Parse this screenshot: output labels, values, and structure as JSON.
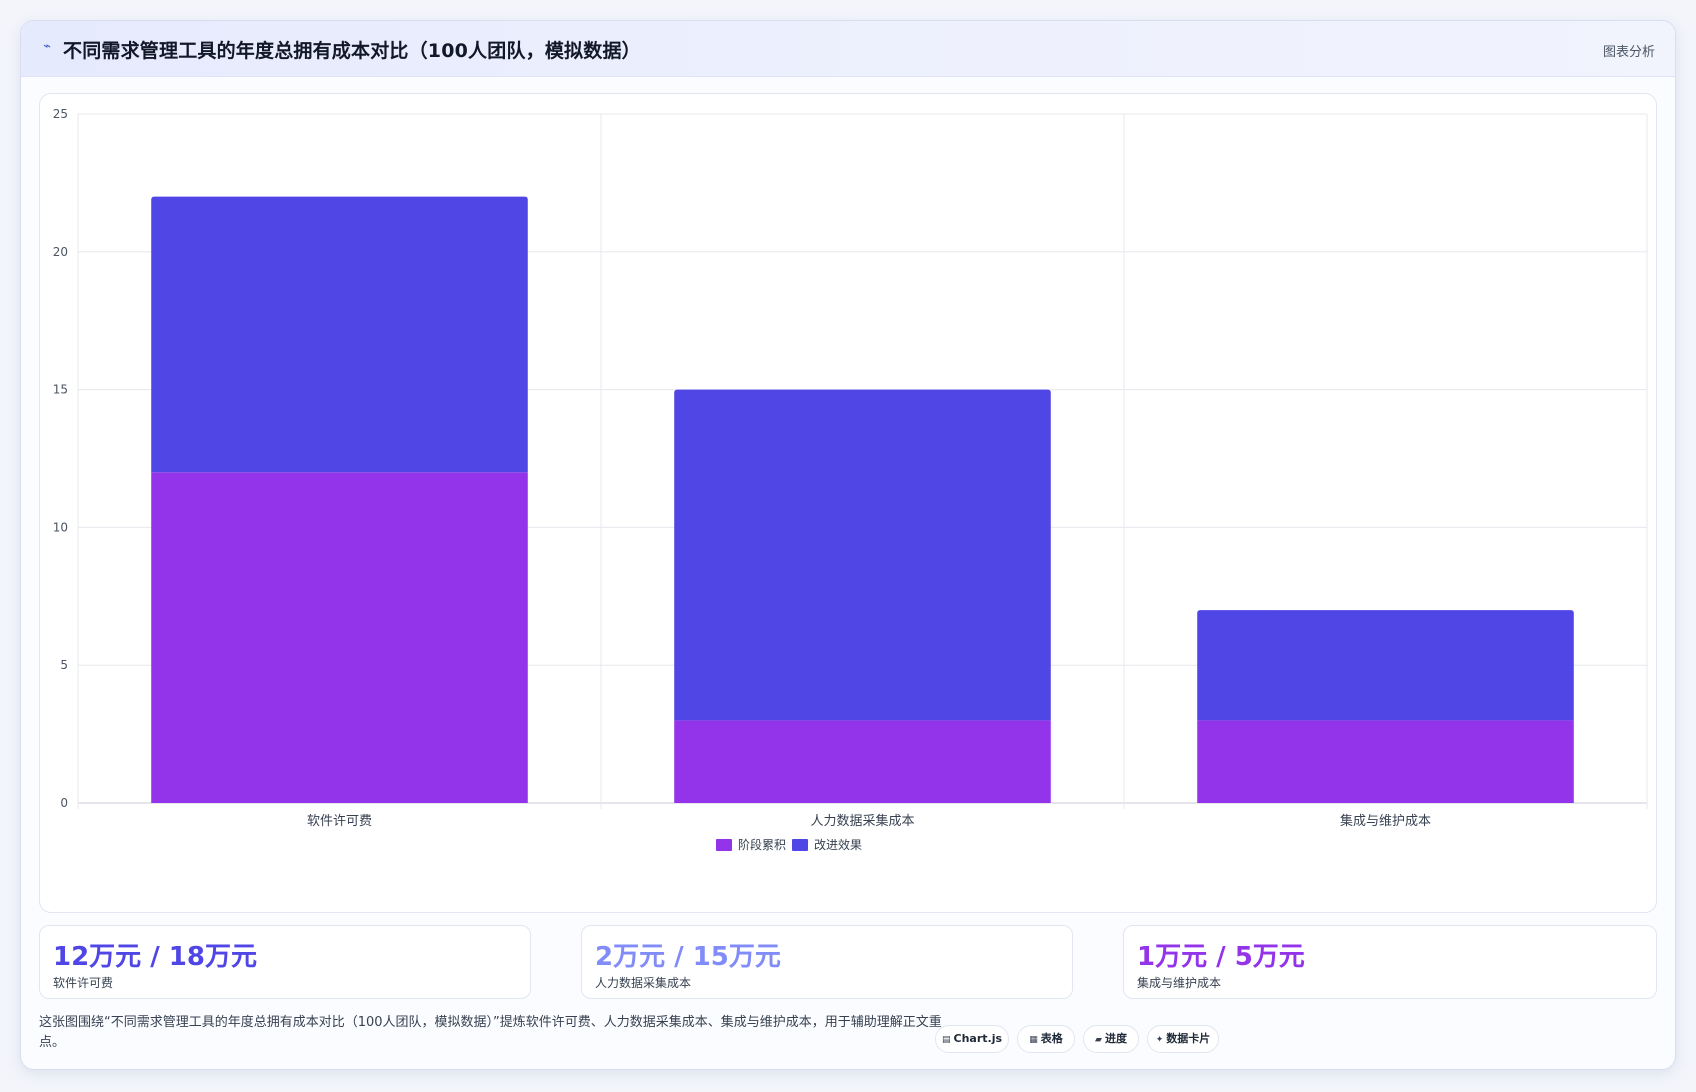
{
  "header": {
    "icon": "chart-line-icon",
    "title": "不同需求管理工具的年度总拥有成本对比（100人团队，模拟数据）",
    "link_label": "图表分析"
  },
  "colors": {
    "series_stage": "#9333ea",
    "series_improve": "#4f46e5",
    "stat_1": "#4f46e5",
    "stat_2": "#818cf8",
    "stat_3": "#9333ea"
  },
  "chart_data": {
    "type": "bar",
    "stacked": true,
    "categories": [
      "软件许可费",
      "人力数据采集成本",
      "集成与维护成本"
    ],
    "series": [
      {
        "name": "阶段累积",
        "values": [
          12,
          3,
          3
        ]
      },
      {
        "name": "改进效果",
        "values": [
          10,
          12,
          4
        ]
      }
    ],
    "ylim": [
      0,
      25
    ],
    "yticks": [
      0,
      5,
      10,
      15,
      20,
      25
    ],
    "grid": true,
    "legend_position": "bottom"
  },
  "stats": [
    {
      "value": "12万元 / 18万元",
      "label": "软件许可费"
    },
    {
      "value": "2万元 / 15万元",
      "label": "人力数据采集成本"
    },
    {
      "value": "1万元 / 5万元",
      "label": "集成与维护成本"
    }
  ],
  "footer": {
    "text": "这张图围绕“不同需求管理工具的年度总拥有成本对比（100人团队，模拟数据）”提炼软件许可费、人力数据采集成本、集成与维护成本，用于辅助理解正文重点。",
    "chips": [
      {
        "icon": "chart-icon",
        "label": "Chart.js"
      },
      {
        "icon": "table-icon",
        "label": "表格"
      },
      {
        "icon": "progress-icon",
        "label": "进度"
      },
      {
        "icon": "sparkle-icon",
        "label": "数据卡片"
      }
    ]
  }
}
